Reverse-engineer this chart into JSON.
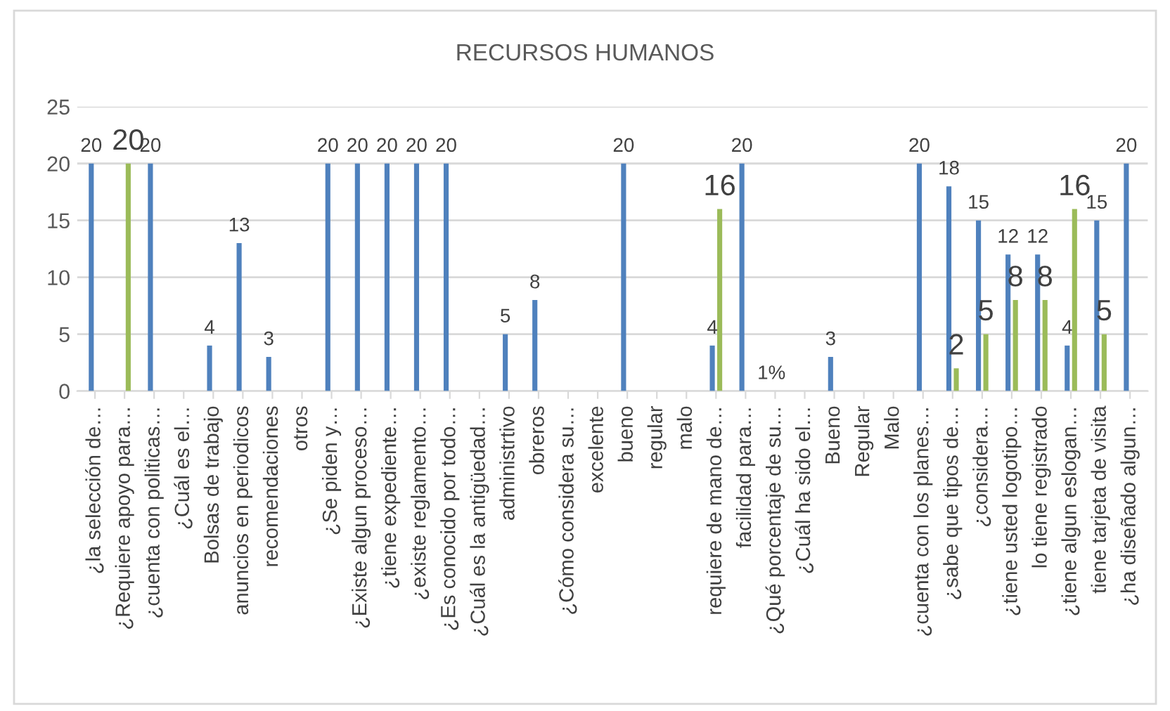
{
  "chart_data": {
    "type": "bar",
    "title": "RECURSOS HUMANOS",
    "categories": [
      "¿la selección de…",
      "¿Requiere apoyo para…",
      "¿cuenta con politicas…",
      "¿Cuál es el…",
      "Bolsas de trabajo",
      "anuncios en periodicos",
      "recomendaciones",
      "otros",
      "¿Se piden y…",
      "¿Existe algun proceso…",
      "¿tiene expediente…",
      "¿existe reglamento…",
      "¿Es conocido por todo…",
      "¿Cuál es la antigüedad…",
      "administrtivo",
      "obreros",
      "¿Cómo considera su…",
      "excelente",
      "bueno",
      "regular",
      "malo",
      "requiere de mano de…",
      "facilidad para…",
      "¿Qué porcentaje de su…",
      "¿Cuál ha sido el…",
      "Bueno",
      "Regular",
      "Malo",
      "¿cuenta con los planes…",
      "¿sabe que tipos de…",
      "¿considera…",
      "¿tiene usted logotipo…",
      "lo tiene registrado",
      "¿tiene algun eslogan…",
      "tiene tarjeta de visita",
      "¿ha diseñado algun…"
    ],
    "series": [
      {
        "color": "#4f81bd",
        "values": [
          20,
          null,
          20,
          null,
          4,
          13,
          3,
          null,
          20,
          20,
          20,
          20,
          20,
          null,
          5,
          8,
          null,
          null,
          20,
          null,
          null,
          4,
          20,
          0.01,
          null,
          3,
          null,
          null,
          20,
          18,
          15,
          12,
          12,
          4,
          15,
          20
        ],
        "value_labels": [
          "20",
          null,
          "20",
          null,
          "4",
          "13",
          "3",
          null,
          "20",
          "20",
          "20",
          "20",
          "20",
          null,
          "5",
          "8",
          null,
          null,
          "20",
          null,
          null,
          "4",
          "20",
          "1%",
          null,
          "3",
          null,
          null,
          "20",
          "18",
          "15",
          "12",
          "12",
          "4",
          "15",
          "20"
        ]
      },
      {
        "color": "#9bbb59",
        "values": [
          null,
          20,
          null,
          null,
          null,
          null,
          null,
          null,
          null,
          null,
          null,
          null,
          null,
          null,
          null,
          null,
          null,
          null,
          null,
          null,
          null,
          16,
          null,
          null,
          null,
          null,
          null,
          null,
          null,
          2,
          5,
          8,
          8,
          16,
          5,
          null
        ],
        "value_labels": [
          null,
          "20",
          null,
          null,
          null,
          null,
          null,
          null,
          null,
          null,
          null,
          null,
          null,
          null,
          null,
          null,
          null,
          null,
          null,
          null,
          null,
          "16",
          null,
          null,
          null,
          null,
          null,
          null,
          null,
          "2",
          "5",
          "8",
          "8",
          "16",
          "5",
          null
        ]
      }
    ],
    "ylim": [
      0,
      25
    ],
    "yticks": [
      0,
      5,
      10,
      15,
      20,
      25
    ],
    "grid": "y",
    "legend": false
  }
}
